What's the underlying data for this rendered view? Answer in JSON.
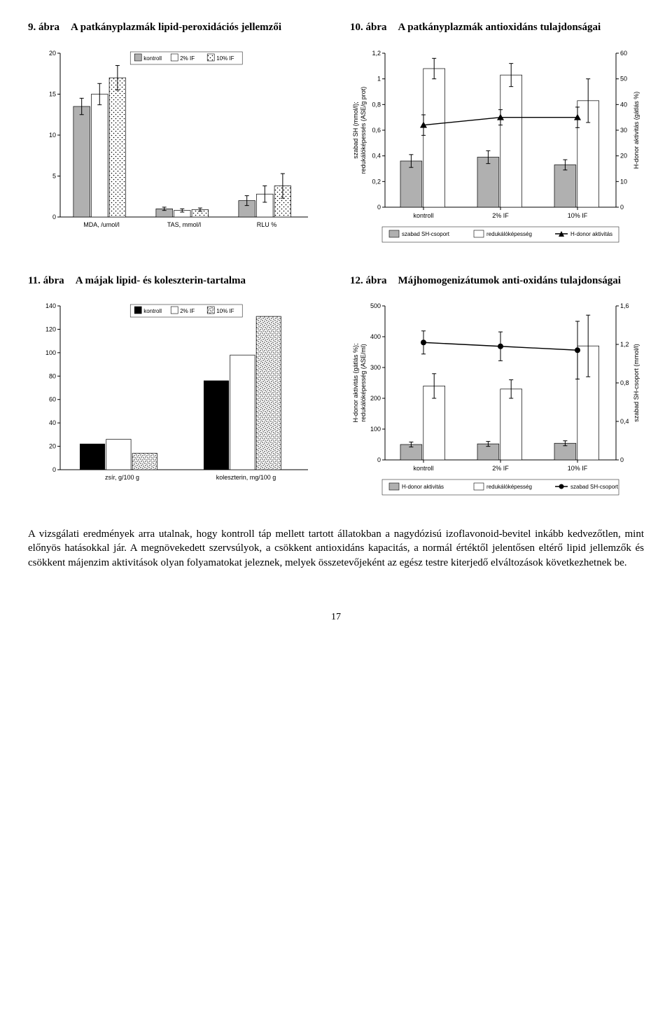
{
  "fig9": {
    "num": "9. ábra",
    "title": "A patkányplazmák lipid-peroxidációs jellemzői",
    "legend": [
      "kontroll",
      "2% IF",
      "10% IF"
    ],
    "categories": [
      "MDA, /umol/l",
      "TAS, mmol/l",
      "RLU %"
    ],
    "data": [
      {
        "vals": [
          13.5,
          15,
          17
        ],
        "errs": [
          1.0,
          1.3,
          1.5
        ]
      },
      {
        "vals": [
          1.0,
          0.8,
          0.9
        ],
        "errs": [
          0.2,
          0.2,
          0.2
        ]
      },
      {
        "vals": [
          2.0,
          2.8,
          3.8
        ],
        "errs": [
          0.6,
          1.0,
          1.5
        ]
      }
    ],
    "ylim": [
      0,
      20
    ],
    "ytick": 5,
    "bar_colors": [
      "#b0b0b0",
      "#ffffff",
      "#ffffff"
    ],
    "bar_pattern": [
      null,
      null,
      "dots1"
    ],
    "stroke": "#000",
    "bg": "#fff"
  },
  "fig10": {
    "num": "10. ábra",
    "title": "A patkányplazmák antioxidáns tulajdonságai",
    "left_axis": "szabad SH (mmol/l);\nredukálóképessés (ASE/g prot)",
    "right_axis": "H-donor aktivitás (gátlás %)",
    "categories": [
      "kontroll",
      "2% IF",
      "10% IF"
    ],
    "left_lim": [
      0,
      1.2
    ],
    "left_tick": 0.2,
    "right_lim": [
      0,
      60
    ],
    "right_tick": 10,
    "bars": {
      "szabad SH-csoport": {
        "vals": [
          0.36,
          0.39,
          0.33
        ],
        "errs": [
          0.05,
          0.05,
          0.04
        ],
        "color": "#b0b0b0"
      },
      "redukálóképesség": {
        "vals": [
          1.08,
          1.03,
          0.83
        ],
        "errs": [
          0.08,
          0.09,
          0.17
        ],
        "color": "#ffffff"
      }
    },
    "line": {
      "name": "H-donor aktivitás",
      "vals": [
        32,
        35,
        35
      ],
      "errs": [
        4,
        3,
        4
      ],
      "color": "#000",
      "marker": "triangle"
    },
    "legend": [
      "szabad SH-csoport",
      "redukálóképesség",
      "H-donor aktivitás"
    ]
  },
  "fig11": {
    "num": "11. ábra",
    "title": "A májak lipid- és koleszterin-tartalma",
    "legend": [
      "kontroll",
      "2% IF",
      "10% IF"
    ],
    "categories": [
      "zsír, g/100 g",
      "koleszterin, mg/100 g"
    ],
    "data": [
      {
        "vals": [
          22,
          26,
          14
        ],
        "errs": [
          0,
          0,
          0
        ]
      },
      {
        "vals": [
          76,
          98,
          131
        ],
        "errs": [
          0,
          0,
          0
        ]
      }
    ],
    "ylim": [
      0,
      140
    ],
    "ytick": 20,
    "bar_colors": [
      "#000000",
      "#ffffff",
      "#ffffff"
    ],
    "bar_pattern": [
      null,
      null,
      "dots2"
    ]
  },
  "fig12": {
    "num": "12. ábra",
    "title": "Májhomogenizátumok anti-oxidáns tulajdonságai",
    "left_axis": "H-donor aktivitás (gátlás %);\nredukálóképesség (ASE/ml)",
    "right_axis": "szabad SH-csoport (mmol/l)",
    "categories": [
      "kontroll",
      "2% IF",
      "10% IF"
    ],
    "left_lim": [
      0,
      500
    ],
    "left_tick": 100,
    "right_lim": [
      0,
      1.6
    ],
    "right_tick": 0.4,
    "bars": {
      "H-donor aktivitás": {
        "vals": [
          50,
          52,
          54
        ],
        "errs": [
          8,
          8,
          8
        ],
        "color": "#b0b0b0"
      },
      "redukálóképesség": {
        "vals": [
          240,
          230,
          370
        ],
        "errs": [
          40,
          30,
          100
        ],
        "color": "#ffffff"
      }
    },
    "line": {
      "name": "szabad SH-csoport",
      "vals": [
        1.22,
        1.18,
        1.14
      ],
      "errs": [
        0.12,
        0.15,
        0.3
      ],
      "color": "#000",
      "marker": "circle"
    },
    "legend": [
      "H-donor aktivitás",
      "redukálóképesség",
      "szabad SH-csoport"
    ]
  },
  "body_text": "A vizsgálati eredmények arra utalnak, hogy kontroll táp mellett tartott állatokban a nagydózisú izoflavonoid-bevitel inkább kedvezőtlen, mint előnyös hatásokkal jár. A megnövekedett szervsúlyok, a csökkent antioxidáns kapacitás, a normál értéktől jelentősen eltérő lipid jellemzők és csökkent májenzim aktivitások olyan folyamatokat jeleznek, melyek összetevőjeként az egész testre kiterjedő elváltozások következhetnek be.",
  "pagenum": "17"
}
